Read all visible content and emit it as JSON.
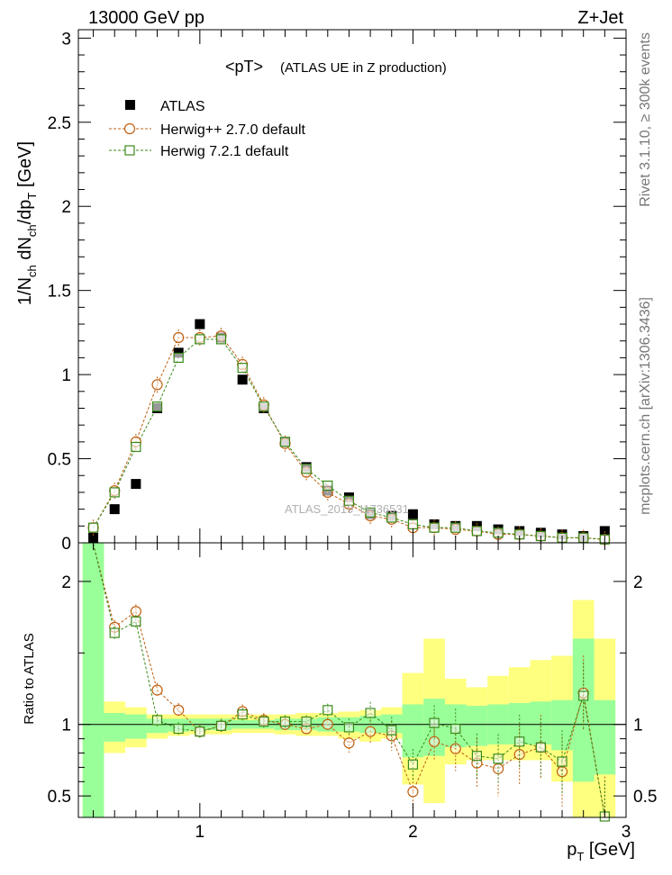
{
  "header": {
    "left": "13000 GeV pp",
    "right": "Z+Jet"
  },
  "side_labels": {
    "top": "Rivet 3.1.10, ≥ 300k events",
    "bottom": "mcplots.cern.ch [arXiv:1306.3436]"
  },
  "watermark": "ATLAS_2019_I1736531",
  "colors": {
    "atlas": "#000000",
    "herwig_pp": "#c06010",
    "herwig7": "#3a8a1a",
    "band_yellow": "#ffff7f",
    "band_green": "#99ff99"
  },
  "chart_data": [
    {
      "type": "scatter",
      "panel": "main",
      "title": "<pT>",
      "subtitle": "(ATLAS UE in Z production)",
      "ylabel": "1/N_ch dN_ch/dp_T [GeV]",
      "xlim": [
        0.43,
        3.0
      ],
      "ylim": [
        0.0,
        3.05
      ],
      "yticks": [
        0,
        0.5,
        1,
        1.5,
        2,
        2.5,
        3
      ],
      "ytick_labels": [
        "0",
        "0.5",
        "1",
        "1.5",
        "2",
        "2.5",
        "3"
      ],
      "legend_position": "top-left",
      "x": [
        0.5,
        0.6,
        0.7,
        0.8,
        0.9,
        1.0,
        1.1,
        1.2,
        1.3,
        1.4,
        1.5,
        1.6,
        1.7,
        1.8,
        1.9,
        2.0,
        2.1,
        2.2,
        2.3,
        2.4,
        2.5,
        2.6,
        2.7,
        2.8,
        2.9
      ],
      "series": [
        {
          "name": "ATLAS",
          "marker": "filled-square",
          "values": [
            0.03,
            0.2,
            0.35,
            0.8,
            1.13,
            1.3,
            1.22,
            0.97,
            0.8,
            0.6,
            0.45,
            0.31,
            0.27,
            0.17,
            0.16,
            0.17,
            0.11,
            0.1,
            0.1,
            0.08,
            0.07,
            0.06,
            0.05,
            0.04,
            0.07
          ]
        },
        {
          "name": "Herwig++ 2.7.0 default",
          "marker": "open-circle",
          "values": [
            0.09,
            0.31,
            0.6,
            0.94,
            1.22,
            1.22,
            1.23,
            1.06,
            0.82,
            0.59,
            0.42,
            0.3,
            0.23,
            0.16,
            0.14,
            0.09,
            0.09,
            0.08,
            0.07,
            0.05,
            0.05,
            0.04,
            0.03,
            0.03,
            0.02
          ]
        },
        {
          "name": "Herwig 7.2.1 default",
          "marker": "open-square",
          "values": [
            0.09,
            0.3,
            0.57,
            0.81,
            1.1,
            1.21,
            1.21,
            1.04,
            0.81,
            0.6,
            0.44,
            0.34,
            0.25,
            0.18,
            0.15,
            0.11,
            0.09,
            0.09,
            0.07,
            0.06,
            0.05,
            0.04,
            0.03,
            0.03,
            0.02
          ]
        }
      ]
    },
    {
      "type": "line",
      "panel": "ratio",
      "ylabel": "Ratio to ATLAS",
      "xlabel": "p_T [GeV]",
      "xlim": [
        0.43,
        3.0
      ],
      "ylim": [
        0.35,
        2.27
      ],
      "xticks": [
        1,
        2,
        3
      ],
      "xtick_labels": [
        "1",
        "2",
        "3"
      ],
      "yticks": [
        0.5,
        1,
        2
      ],
      "ytick_labels": [
        "0.5",
        "1",
        "2"
      ],
      "x": [
        0.5,
        0.6,
        0.7,
        0.8,
        0.9,
        1.0,
        1.1,
        1.2,
        1.3,
        1.4,
        1.5,
        1.6,
        1.7,
        1.8,
        1.9,
        2.0,
        2.1,
        2.2,
        2.3,
        2.4,
        2.5,
        2.6,
        2.7,
        2.8,
        2.9
      ],
      "reference": 1.0,
      "band_yellow": {
        "lower": [
          0.35,
          0.8,
          0.84,
          0.9,
          0.92,
          0.93,
          0.93,
          0.94,
          0.94,
          0.93,
          0.92,
          0.92,
          0.9,
          0.88,
          0.9,
          0.58,
          0.45,
          0.72,
          0.75,
          0.75,
          0.75,
          0.75,
          0.6,
          0.35,
          0.35
        ],
        "upper": [
          2.27,
          1.16,
          1.12,
          1.07,
          1.07,
          1.07,
          1.07,
          1.07,
          1.07,
          1.07,
          1.08,
          1.08,
          1.09,
          1.1,
          1.12,
          1.36,
          1.6,
          1.32,
          1.26,
          1.34,
          1.4,
          1.45,
          1.48,
          1.87,
          1.6
        ]
      },
      "band_green": {
        "lower": [
          0.35,
          0.88,
          0.9,
          0.94,
          0.95,
          0.96,
          0.96,
          0.97,
          0.97,
          0.96,
          0.96,
          0.95,
          0.95,
          0.94,
          0.94,
          0.77,
          0.78,
          0.84,
          0.85,
          0.86,
          0.86,
          0.86,
          0.82,
          0.6,
          0.65
        ],
        "upper": [
          2.27,
          1.08,
          1.07,
          1.04,
          1.04,
          1.04,
          1.04,
          1.03,
          1.03,
          1.04,
          1.04,
          1.05,
          1.05,
          1.06,
          1.07,
          1.14,
          1.18,
          1.14,
          1.13,
          1.14,
          1.15,
          1.16,
          1.17,
          1.6,
          1.17
        ]
      },
      "series": [
        {
          "name": "Herwig++ 2.7.0 default",
          "marker": "open-circle",
          "values": [
            2.5,
            1.68,
            1.79,
            1.24,
            1.1,
            0.95,
            0.99,
            1.09,
            1.03,
            1.0,
            0.97,
            1.0,
            0.87,
            0.95,
            0.92,
            0.53,
            0.88,
            0.83,
            0.73,
            0.69,
            0.79,
            0.84,
            0.67,
            1.22,
            0.2
          ]
        },
        {
          "name": "Herwig 7.2.1 default",
          "marker": "open-square",
          "values": [
            2.5,
            1.64,
            1.72,
            1.03,
            0.97,
            0.95,
            0.99,
            1.07,
            1.02,
            1.02,
            1.02,
            1.1,
            0.98,
            1.08,
            0.96,
            0.72,
            1.01,
            0.97,
            0.78,
            0.76,
            0.88,
            0.84,
            0.74,
            1.2,
            0.35
          ]
        }
      ]
    }
  ]
}
